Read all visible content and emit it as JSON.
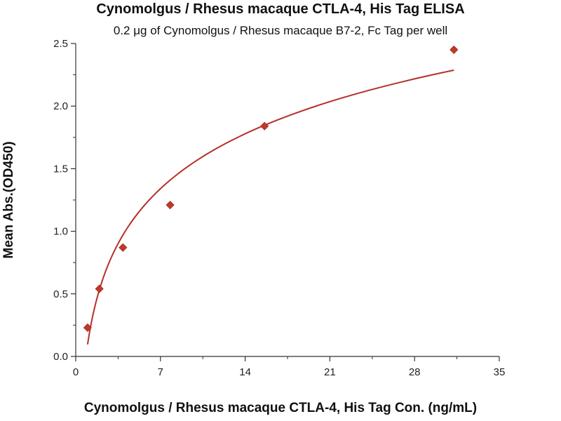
{
  "chart_data": {
    "type": "scatter",
    "title": "Cynomolgus / Rhesus macaque CTLA-4, His Tag ELISA",
    "subtitle": "0.2 μg of Cynomolgus / Rhesus macaque B7-2, Fc Tag per well",
    "xlabel": "Cynomolgus / Rhesus macaque CTLA-4, His Tag Con. (ng/mL)",
    "ylabel": "Mean Abs.(OD450)",
    "xlim": [
      0,
      35
    ],
    "ylim": [
      0,
      2.5
    ],
    "x_ticks": [
      "0",
      "7",
      "14",
      "21",
      "28",
      "35"
    ],
    "x_tick_values": [
      0,
      7,
      14,
      21,
      28,
      35
    ],
    "y_ticks": [
      "0.0",
      "0.5",
      "1.0",
      "1.5",
      "2.0",
      "2.5"
    ],
    "y_tick_values": [
      0,
      0.5,
      1.0,
      1.5,
      2.0,
      2.5
    ],
    "grid": false,
    "legend": "none",
    "series": [
      {
        "x": [
          0.98,
          1.95,
          3.9,
          7.8,
          15.6,
          31.25
        ],
        "y": [
          0.23,
          0.54,
          0.87,
          1.21,
          1.84,
          2.45
        ],
        "marker": "diamond",
        "fit_curve": true
      }
    ],
    "colors": {
      "marker": "#c0392b",
      "curve": "#b5302a",
      "axis": "#333333"
    }
  }
}
